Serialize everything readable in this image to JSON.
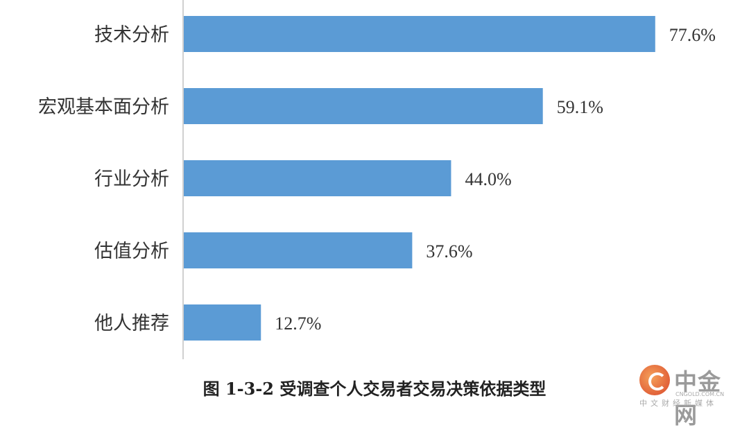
{
  "chart_data": {
    "type": "bar",
    "orientation": "horizontal",
    "categories": [
      "技术分析",
      "宏观基本面分析",
      "行业分析",
      "估值分析",
      "他人推荐"
    ],
    "values": [
      77.6,
      59.1,
      44.0,
      37.6,
      12.7
    ],
    "value_labels": [
      "77.6%",
      "59.1%",
      "44.0%",
      "37.6%",
      "12.7%"
    ],
    "unit": "%",
    "xlim": [
      0,
      100
    ],
    "grid": false,
    "legend": "none",
    "bar_color": "#5b9bd5",
    "title": "图 1-3-2 受调查个人交易者交易决策依据类型"
  },
  "watermark": {
    "brand": "中金网",
    "domain": "CNGOLD.COM.CN",
    "tagline": "中文财经新媒体"
  }
}
